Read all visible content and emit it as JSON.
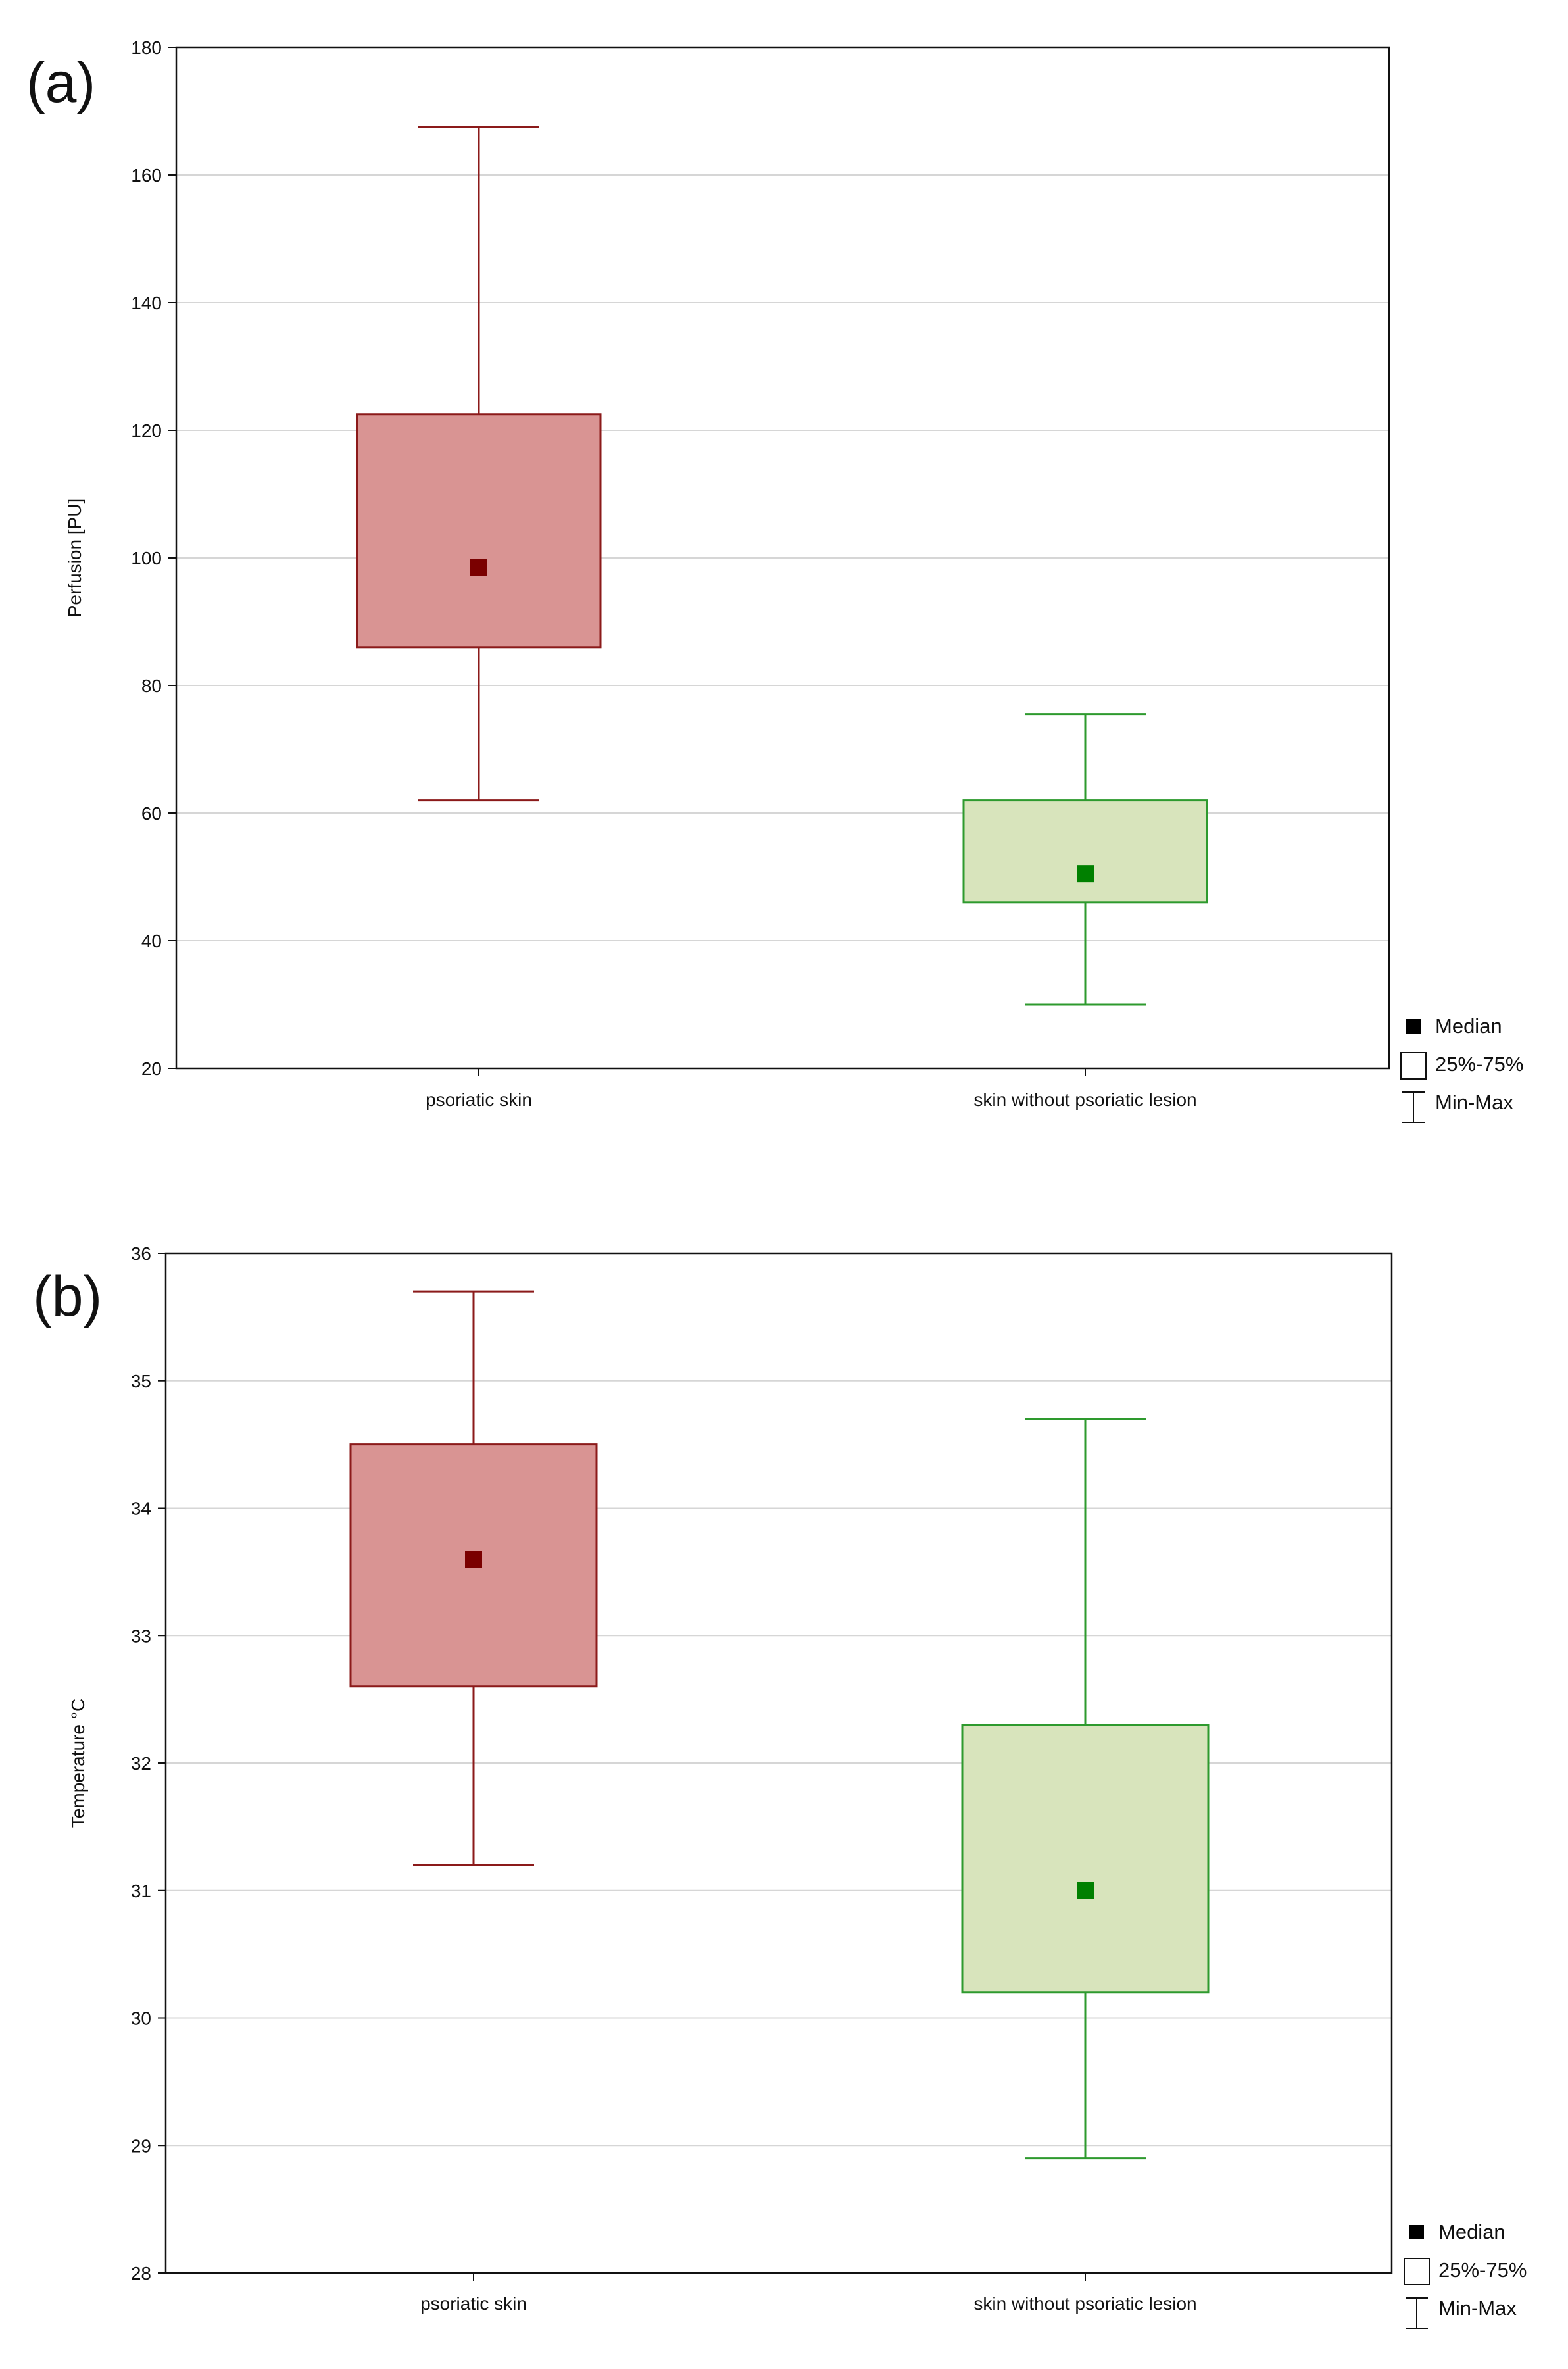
{
  "chart_data": [
    {
      "type": "box",
      "panel_label": "(a)",
      "ylabel": "Perfusion [PU]",
      "xlabel": "",
      "ylim": [
        20,
        180
      ],
      "yticks": [
        20,
        40,
        60,
        80,
        100,
        120,
        140,
        160,
        180
      ],
      "grid": true,
      "categories": [
        "psoriatic skin",
        "skin without psoriatic lesion"
      ],
      "series": [
        {
          "name": "psoriatic skin",
          "min": 62,
          "q1": 86,
          "median": 98.5,
          "q3": 122.5,
          "max": 167.5,
          "fill": "#d99493",
          "stroke": "#8b1a1a",
          "marker": "#7a0000"
        },
        {
          "name": "skin without psoriatic lesion",
          "min": 30,
          "q1": 46,
          "median": 50.5,
          "q3": 62,
          "max": 75.5,
          "fill": "#d8e4bc",
          "stroke": "#2e9a2e",
          "marker": "#008000"
        }
      ],
      "legend": {
        "position": "bottom-right",
        "entries": [
          "Median",
          "25%-75%",
          "Min-Max"
        ]
      }
    },
    {
      "type": "box",
      "panel_label": "(b)",
      "ylabel": "Temperature °C",
      "xlabel": "",
      "ylim": [
        28,
        36
      ],
      "yticks": [
        28,
        29,
        30,
        31,
        32,
        33,
        34,
        35,
        36
      ],
      "grid": true,
      "categories": [
        "psoriatic skin",
        "skin without psoriatic lesion"
      ],
      "series": [
        {
          "name": "psoriatic skin",
          "min": 31.2,
          "q1": 32.6,
          "median": 33.6,
          "q3": 34.5,
          "max": 35.7,
          "fill": "#d99493",
          "stroke": "#8b1a1a",
          "marker": "#7a0000"
        },
        {
          "name": "skin without psoriatic lesion",
          "min": 28.9,
          "q1": 30.2,
          "median": 31,
          "q3": 32.3,
          "max": 34.7,
          "fill": "#d8e4bc",
          "stroke": "#2e9a2e",
          "marker": "#008000"
        }
      ],
      "legend": {
        "position": "bottom-right",
        "entries": [
          "Median",
          "25%-75%",
          "Min-Max"
        ]
      }
    }
  ]
}
